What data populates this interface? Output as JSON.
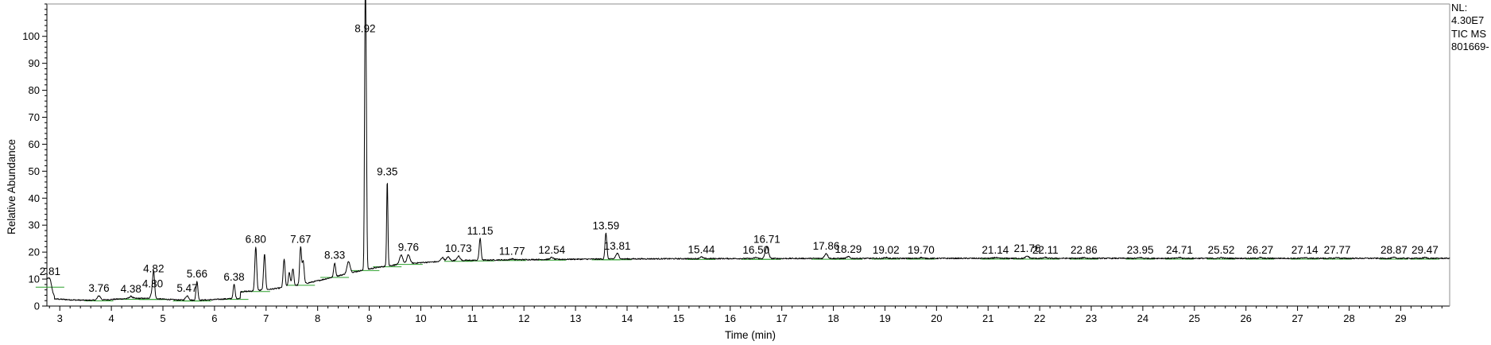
{
  "chart_data": {
    "type": "line",
    "xlabel": "Time (min)",
    "ylabel": "Relative Abundance",
    "xlim": [
      2.75,
      29.95
    ],
    "ylim": [
      0,
      112
    ],
    "x_ticks": [
      3,
      4,
      5,
      6,
      7,
      8,
      9,
      10,
      11,
      12,
      13,
      14,
      15,
      16,
      17,
      18,
      19,
      20,
      21,
      22,
      23,
      24,
      25,
      26,
      27,
      28,
      29
    ],
    "y_ticks": [
      0,
      10,
      20,
      30,
      40,
      50,
      60,
      70,
      80,
      90,
      100
    ],
    "x_minor_step": 0.2,
    "y_minor_step": 2,
    "grid": false,
    "legend": "none",
    "colors": {
      "trace": "#000000",
      "baseline_marks": "#2ca02c",
      "axes": "#000000"
    },
    "info_box": {
      "nl_label": "NL:",
      "nl_value": "4.30E7",
      "trace_name": "TIC  MS",
      "file": "801669-"
    },
    "peaks": [
      {
        "rt": 2.81,
        "label": "2.81",
        "height": 10.0
      },
      {
        "rt": 3.76,
        "label": "3.76",
        "height": 3.8
      },
      {
        "rt": 4.38,
        "label": "4.38",
        "height": 3.6
      },
      {
        "rt": 4.8,
        "label": "4.80",
        "height": 5.5
      },
      {
        "rt": 4.82,
        "label": "4.82",
        "height": 11.0
      },
      {
        "rt": 5.47,
        "label": "5.47",
        "height": 3.8
      },
      {
        "rt": 5.66,
        "label": "5.66",
        "height": 9.2
      },
      {
        "rt": 6.38,
        "label": "6.38",
        "height": 8.0
      },
      {
        "rt": 6.8,
        "label": "6.80",
        "height": 22.0
      },
      {
        "rt": 7.67,
        "label": "7.67",
        "height": 22.0
      },
      {
        "rt": 8.33,
        "label": "8.33",
        "height": 16.0
      },
      {
        "rt": 8.92,
        "label": "8.92",
        "height": 100.0
      },
      {
        "rt": 9.35,
        "label": "9.35",
        "height": 47.0
      },
      {
        "rt": 9.76,
        "label": "9.76",
        "height": 19.0
      },
      {
        "rt": 10.73,
        "label": "10.73",
        "height": 18.5
      },
      {
        "rt": 11.15,
        "label": "11.15",
        "height": 25.0
      },
      {
        "rt": 11.77,
        "label": "11.77",
        "height": 17.5
      },
      {
        "rt": 12.54,
        "label": "12.54",
        "height": 18.0
      },
      {
        "rt": 13.59,
        "label": "13.59",
        "height": 27.0
      },
      {
        "rt": 13.81,
        "label": "13.81",
        "height": 19.5
      },
      {
        "rt": 15.44,
        "label": "15.44",
        "height": 18.2
      },
      {
        "rt": 16.5,
        "label": "16.50",
        "height": 18.0
      },
      {
        "rt": 16.71,
        "label": "16.71",
        "height": 22.0
      },
      {
        "rt": 17.86,
        "label": "17.86",
        "height": 19.5
      },
      {
        "rt": 18.29,
        "label": "18.29",
        "height": 18.3
      },
      {
        "rt": 19.02,
        "label": "19.02",
        "height": 18.0
      },
      {
        "rt": 19.7,
        "label": "19.70",
        "height": 18.0
      },
      {
        "rt": 21.14,
        "label": "21.14",
        "height": 18.0
      },
      {
        "rt": 21.76,
        "label": "21.76",
        "height": 18.5
      },
      {
        "rt": 22.11,
        "label": "22.11",
        "height": 18.0
      },
      {
        "rt": 22.86,
        "label": "22.86",
        "height": 18.0
      },
      {
        "rt": 23.95,
        "label": "23.95",
        "height": 18.0
      },
      {
        "rt": 24.71,
        "label": "24.71",
        "height": 18.0
      },
      {
        "rt": 25.52,
        "label": "25.52",
        "height": 18.0
      },
      {
        "rt": 26.27,
        "label": "26.27",
        "height": 18.0
      },
      {
        "rt": 27.14,
        "label": "27.14",
        "height": 18.0
      },
      {
        "rt": 27.77,
        "label": "27.77",
        "height": 18.0
      },
      {
        "rt": 28.87,
        "label": "28.87",
        "height": 18.0
      },
      {
        "rt": 29.47,
        "label": "29.47",
        "height": 18.0
      }
    ],
    "minor_peaks": [
      {
        "rt": 6.97,
        "height": 19.5
      },
      {
        "rt": 7.35,
        "height": 17.5
      },
      {
        "rt": 7.45,
        "height": 12.5
      },
      {
        "rt": 7.52,
        "height": 14.0
      },
      {
        "rt": 7.72,
        "height": 16.5
      },
      {
        "rt": 8.6,
        "height": 16.5
      },
      {
        "rt": 8.94,
        "height": 74.0
      },
      {
        "rt": 9.62,
        "height": 19.0
      },
      {
        "rt": 10.42,
        "height": 18.0
      },
      {
        "rt": 10.53,
        "height": 18.2
      }
    ]
  }
}
